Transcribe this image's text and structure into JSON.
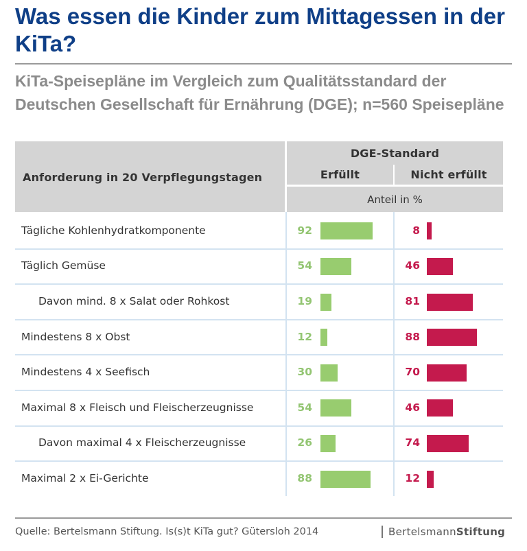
{
  "title": "Was essen die Kinder zum Mittagessen in der KiTa?",
  "subtitle": "KiTa-Speisepläne im Vergleich zum Qualitätsstandard der Deutschen Gesellschaft für Ernährung (DGE); n=560 Speisepläne",
  "table_header": {
    "requirement": "Anforderung in 20 Verpflegungstagen",
    "group": "DGE-Standard",
    "col_fulfilled": "Erfüllt",
    "col_not_fulfilled": "Nicht erfüllt",
    "unit": "Anteil in %"
  },
  "chart_data": {
    "type": "bar",
    "title": "Was essen die Kinder zum Mittagessen in der KiTa?",
    "categories": [
      "Tägliche Kohlenhydratkomponente",
      "Täglich Gemüse",
      "Davon mind. 8 x Salat oder Rohkost",
      "Mindestens 8 x Obst",
      "Mindestens 4 x Seefisch",
      "Maximal 8 x Fleisch und Fleischerzeugnisse",
      "Davon maximal 4 x Fleischerzeugnisse",
      "Maximal 2 x Ei-Gerichte"
    ],
    "indented": [
      false,
      false,
      true,
      false,
      false,
      false,
      true,
      false
    ],
    "series": [
      {
        "name": "Erfüllt",
        "color": "#98cc6f",
        "values": [
          92,
          54,
          19,
          12,
          30,
          54,
          26,
          88
        ]
      },
      {
        "name": "Nicht erfüllt",
        "color": "#c41a4d",
        "values": [
          8,
          46,
          81,
          88,
          70,
          46,
          74,
          12
        ]
      }
    ],
    "xlabel": "",
    "ylabel": "Anteil in %",
    "ylim": [
      0,
      100
    ]
  },
  "footer": {
    "source": "Quelle: Bertelsmann Stiftung. Is(s)t KiTa gut? Gütersloh 2014",
    "brand_part1": "Bertelsmann",
    "brand_part2": "Stiftung"
  }
}
